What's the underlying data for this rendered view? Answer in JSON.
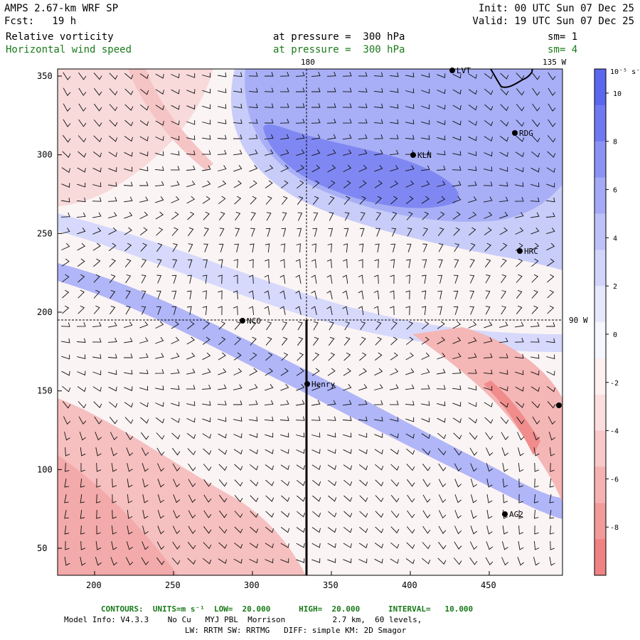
{
  "header": {
    "model": "AMPS 2.67-km WRF SP",
    "fcst": "Fcst:   19 h",
    "init": "Init: 00 UTC Sun 07 Dec 25",
    "valid": "Valid: 19 UTC Sun 07 Dec 25",
    "field1_name": "Relative vorticity",
    "field1_level": "at pressure =  300 hPa",
    "field1_sm": "sm= 1",
    "field2_name": "Horizontal wind speed",
    "field2_level": "at pressure =  300 hPa",
    "field2_sm": "sm= 4"
  },
  "map": {
    "x_ticks": [
      "200",
      "250",
      "300",
      "350",
      "400",
      "450"
    ],
    "y_ticks": [
      "350",
      "300",
      "250",
      "200",
      "150",
      "100",
      "50"
    ],
    "meridian_labels": {
      "top_180": "180",
      "top_135w": "135 W",
      "right_90w": "90 W"
    },
    "stations": [
      {
        "name": "LVT"
      },
      {
        "name": "RDG"
      },
      {
        "name": "KLN"
      },
      {
        "name": "HRC"
      },
      {
        "name": "NCO"
      },
      {
        "name": "Henry"
      },
      {
        "name": ""
      },
      {
        "name": "AG2"
      }
    ]
  },
  "colorbar": {
    "unit_label": "10⁻⁵ s⁻¹",
    "ticks": [
      "10",
      "8",
      "6",
      "4",
      "2",
      "0",
      "-2",
      "-4",
      "-6",
      "-8"
    ],
    "colors": [
      "#5c67f0",
      "#7079f2",
      "#8a92f4",
      "#a4aaf6",
      "#bcc1f8",
      "#d2d5fa",
      "#e6e8fc",
      "#f5f6fe",
      "#fdf0f0",
      "#fcdede",
      "#f9c8c8",
      "#f6b2b2",
      "#f39a9a",
      "#f08282"
    ]
  },
  "footer": {
    "contours": "CONTOURS:  UNITS=m s⁻¹  LOW=  20.000      HIGH=  20.000      INTERVAL=   10.000",
    "model_info": "Model Info: V4.3.3    No Cu   MYJ PBL  Morrison          2.7 km,  60 levels,",
    "physics": "LW: RRTM SW: RRTMG   DIFF: simple KM: 2D Smagor"
  }
}
